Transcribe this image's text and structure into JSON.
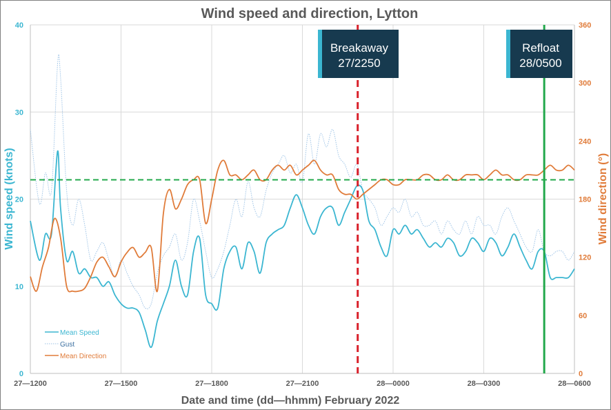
{
  "chart_data": {
    "type": "line",
    "title": "Wind speed and direction, Lytton",
    "xlabel": "Date and time (dd—hhmm) February 2022",
    "ylabel_left": "Wind speed (knots)",
    "ylabel_right": "Wind direction (°)",
    "x_unit": "hours from 27—1200",
    "xlim": [
      0,
      18
    ],
    "ylim_left": [
      0,
      40
    ],
    "ylim_right": [
      0,
      360
    ],
    "x_ticks": [
      0,
      3,
      6,
      9,
      12,
      15,
      18
    ],
    "x_tick_labels": [
      "27—1200",
      "27—1500",
      "27—1800",
      "27—2100",
      "28—0000",
      "28—0300",
      "28—0600"
    ],
    "y_left_ticks": [
      0,
      10,
      20,
      30,
      40
    ],
    "y_right_ticks": [
      0,
      60,
      120,
      180,
      240,
      300,
      360
    ],
    "grid": true,
    "legend_position": "bottom-left",
    "series": [
      {
        "name": "Mean Speed",
        "axis": "left",
        "color": "#3bb6d1",
        "style": "solid",
        "x": [
          0.0,
          0.3,
          0.5,
          0.7,
          0.9,
          1.0,
          1.2,
          1.4,
          1.6,
          1.8,
          2.0,
          2.2,
          2.4,
          2.6,
          2.8,
          3.0,
          3.2,
          3.4,
          3.6,
          3.8,
          4.0,
          4.2,
          4.4,
          4.6,
          4.8,
          5.0,
          5.2,
          5.4,
          5.6,
          5.8,
          6.0,
          6.2,
          6.4,
          6.6,
          6.8,
          7.0,
          7.2,
          7.4,
          7.6,
          7.8,
          8.0,
          8.2,
          8.4,
          8.6,
          8.8,
          9.0,
          9.2,
          9.4,
          9.6,
          9.8,
          10.0,
          10.2,
          10.4,
          10.6,
          10.8,
          11.0,
          11.2,
          11.4,
          11.6,
          11.8,
          12.0,
          12.2,
          12.4,
          12.6,
          12.8,
          13.0,
          13.2,
          13.4,
          13.6,
          13.8,
          14.0,
          14.2,
          14.4,
          14.6,
          14.8,
          15.0,
          15.2,
          15.4,
          15.6,
          15.8,
          16.0,
          16.2,
          16.4,
          16.6,
          16.8,
          17.0,
          17.2,
          17.4,
          17.6,
          17.8,
          18.0
        ],
        "values": [
          17.5,
          13,
          16,
          16,
          25.5,
          19,
          13,
          14,
          11.5,
          12,
          11,
          11,
          10,
          10.5,
          9,
          8,
          7.5,
          7.5,
          7,
          5,
          3,
          6,
          8,
          10,
          13,
          10,
          9,
          14,
          15.5,
          9,
          8,
          7.5,
          12,
          14,
          14.5,
          12,
          15,
          14,
          11.5,
          15,
          16,
          16.5,
          17,
          19,
          20.5,
          19,
          17,
          16,
          18,
          19,
          19,
          17,
          18.5,
          20,
          21.5,
          21,
          17.5,
          16.5,
          14.5,
          13.5,
          16.5,
          16,
          17,
          16,
          16.5,
          15.5,
          14.5,
          15,
          14.5,
          15.5,
          15,
          13.5,
          14,
          15.5,
          15,
          14,
          15.5,
          15,
          13.5,
          14.5,
          16,
          14.5,
          13,
          12,
          14,
          14,
          11,
          11,
          11,
          11,
          12
        ]
      },
      {
        "name": "Gust",
        "axis": "left",
        "color": "#9dc3e6",
        "style": "dotted",
        "x": [
          0.0,
          0.3,
          0.5,
          0.7,
          0.9,
          1.0,
          1.2,
          1.4,
          1.6,
          1.8,
          2.0,
          2.2,
          2.4,
          2.6,
          2.8,
          3.0,
          3.2,
          3.4,
          3.6,
          3.8,
          4.0,
          4.2,
          4.4,
          4.6,
          4.8,
          5.0,
          5.2,
          5.4,
          5.6,
          5.8,
          6.0,
          6.2,
          6.4,
          6.6,
          6.8,
          7.0,
          7.2,
          7.4,
          7.6,
          7.8,
          8.0,
          8.2,
          8.4,
          8.6,
          8.8,
          9.0,
          9.2,
          9.4,
          9.6,
          9.8,
          10.0,
          10.2,
          10.4,
          10.6,
          10.8,
          11.0,
          11.2,
          11.4,
          11.6,
          11.8,
          12.0,
          12.2,
          12.4,
          12.6,
          12.8,
          13.0,
          13.2,
          13.4,
          13.6,
          13.8,
          14.0,
          14.2,
          14.4,
          14.6,
          14.8,
          15.0,
          15.2,
          15.4,
          15.6,
          15.8,
          16.0,
          16.2,
          16.4,
          16.6,
          16.8,
          17.0,
          17.2,
          17.4,
          17.6,
          17.8,
          18.0
        ],
        "values": [
          28,
          19.5,
          23,
          21,
          35.5,
          34,
          21,
          17,
          20,
          17,
          13,
          14,
          15,
          13,
          11,
          13,
          11.5,
          10,
          9,
          7.5,
          8,
          11.5,
          13.5,
          14.5,
          16,
          13,
          15,
          20,
          17.5,
          14,
          11,
          12,
          14,
          17,
          20,
          18,
          22,
          19,
          18,
          21,
          23,
          24,
          25,
          23,
          24,
          22,
          27.5,
          24,
          27.5,
          26,
          28,
          25,
          24,
          22.5,
          24,
          21,
          20,
          19,
          17,
          18,
          19,
          18.5,
          20,
          18,
          18.5,
          17,
          17,
          17.5,
          16,
          17.5,
          16.5,
          16,
          17.5,
          16,
          18,
          17,
          17,
          16,
          18,
          19,
          17.5,
          16,
          14.5,
          14,
          16.5,
          14,
          13.5,
          14,
          14,
          13,
          14
        ]
      },
      {
        "name": "Mean Direction",
        "axis": "right",
        "color": "#e07b39",
        "style": "solid",
        "x": [
          0.0,
          0.2,
          0.4,
          0.6,
          0.8,
          1.0,
          1.2,
          1.4,
          1.6,
          1.8,
          2.0,
          2.2,
          2.4,
          2.6,
          2.8,
          3.0,
          3.2,
          3.4,
          3.6,
          3.8,
          4.0,
          4.2,
          4.4,
          4.6,
          4.8,
          5.0,
          5.2,
          5.4,
          5.6,
          5.8,
          6.0,
          6.2,
          6.4,
          6.6,
          6.8,
          7.0,
          7.2,
          7.4,
          7.6,
          7.8,
          8.0,
          8.2,
          8.4,
          8.6,
          8.8,
          9.0,
          9.2,
          9.4,
          9.6,
          9.8,
          10.0,
          10.2,
          10.4,
          10.6,
          10.8,
          11.0,
          11.2,
          11.4,
          11.6,
          11.8,
          12.0,
          12.2,
          12.4,
          12.6,
          12.8,
          13.0,
          13.2,
          13.4,
          13.6,
          13.8,
          14.0,
          14.2,
          14.4,
          14.6,
          14.8,
          15.0,
          15.2,
          15.4,
          15.6,
          15.8,
          16.0,
          16.2,
          16.4,
          16.6,
          16.8,
          17.0,
          17.2,
          17.4,
          17.6,
          17.8,
          18.0
        ],
        "values": [
          100,
          85,
          110,
          130,
          160,
          140,
          90,
          85,
          85,
          88,
          100,
          115,
          120,
          110,
          100,
          115,
          125,
          130,
          120,
          125,
          130,
          85,
          165,
          190,
          170,
          180,
          195,
          200,
          200,
          155,
          180,
          210,
          220,
          205,
          205,
          200,
          205,
          210,
          200,
          200,
          210,
          215,
          210,
          215,
          205,
          210,
          215,
          220,
          210,
          205,
          205,
          190,
          185,
          185,
          180,
          185,
          190,
          195,
          200,
          200,
          195,
          195,
          200,
          200,
          200,
          205,
          205,
          200,
          200,
          205,
          200,
          200,
          205,
          205,
          205,
          200,
          205,
          210,
          205,
          205,
          200,
          200,
          205,
          205,
          205,
          210,
          215,
          210,
          210,
          215,
          210
        ]
      }
    ],
    "annotations": [
      {
        "x": 10.83,
        "type": "vline",
        "color": "#d9202a",
        "style": "dashed",
        "label_line1": "Breakaway",
        "label_line2": "27/2250"
      },
      {
        "x": 17.0,
        "type": "vline",
        "color": "#22a84b",
        "style": "solid",
        "label_line1": "Refloat",
        "label_line2": "28/0500"
      },
      {
        "y_right": 200,
        "type": "hline",
        "color": "#22a84b",
        "style": "dashed"
      }
    ]
  },
  "colors": {
    "axis_left": "#3bb6d1",
    "axis_right": "#e07b39",
    "grid": "#d9d9d9",
    "callout_bg": "#173a4f",
    "callout_accent": "#3bb6d1",
    "title": "#595959"
  }
}
